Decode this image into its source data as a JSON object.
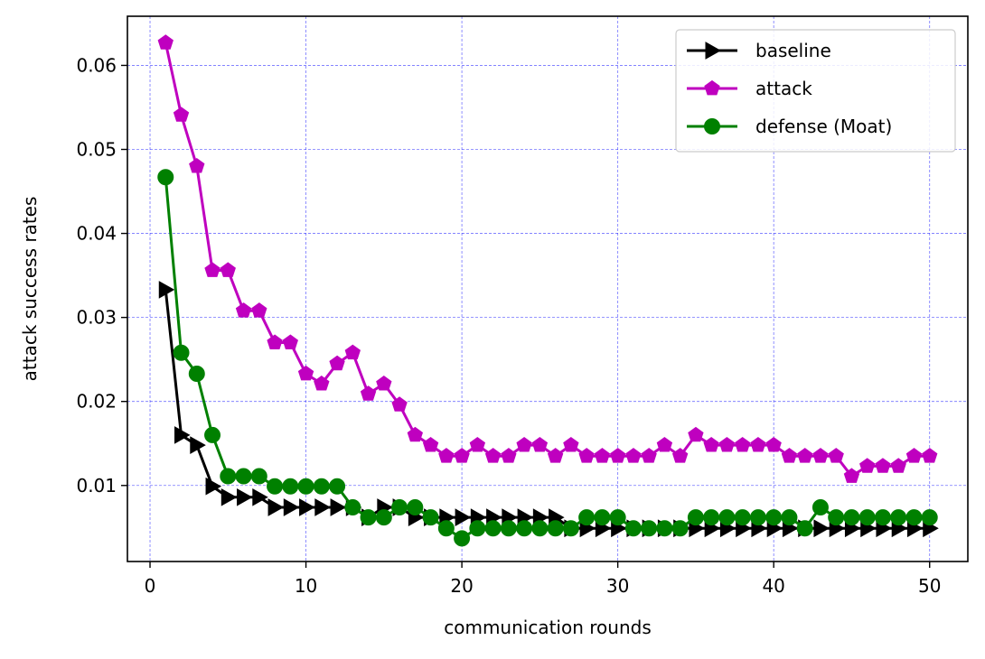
{
  "chart_data": {
    "type": "line",
    "xlabel": "communication rounds",
    "ylabel": "attack success rates",
    "xlim": [
      -1.45,
      52.45
    ],
    "ylim": [
      0.00095,
      0.06585
    ],
    "x_ticks": [
      0,
      10,
      20,
      30,
      40,
      50
    ],
    "x_tick_labels": [
      "0",
      "10",
      "20",
      "30",
      "40",
      "50"
    ],
    "y_ticks": [
      0.01,
      0.02,
      0.03,
      0.04,
      0.05,
      0.06
    ],
    "y_tick_labels": [
      "0.01",
      "0.02",
      "0.03",
      "0.04",
      "0.05",
      "0.06"
    ],
    "grid": true,
    "legend_position": "top-right",
    "x": [
      1,
      2,
      3,
      4,
      5,
      6,
      7,
      8,
      9,
      10,
      11,
      12,
      13,
      14,
      15,
      16,
      17,
      18,
      19,
      20,
      21,
      22,
      23,
      24,
      25,
      26,
      27,
      28,
      29,
      30,
      31,
      32,
      33,
      34,
      35,
      36,
      37,
      38,
      39,
      40,
      41,
      42,
      43,
      44,
      45,
      46,
      47,
      48,
      49,
      50
    ],
    "series": [
      {
        "name": "baseline",
        "color": "#000000",
        "marker": "triangle-right",
        "values": [
          0.0333,
          0.016,
          0.0148,
          0.0099,
          0.0086,
          0.0086,
          0.0086,
          0.0074,
          0.0074,
          0.0074,
          0.0074,
          0.0074,
          0.0074,
          0.0062,
          0.0074,
          0.0074,
          0.0062,
          0.0062,
          0.0062,
          0.0062,
          0.0062,
          0.0062,
          0.0062,
          0.0062,
          0.0062,
          0.0062,
          0.0049,
          0.0049,
          0.0049,
          0.0049,
          0.0049,
          0.0049,
          0.0049,
          0.0049,
          0.0049,
          0.0049,
          0.0049,
          0.0049,
          0.0049,
          0.0049,
          0.0049,
          0.0049,
          0.0049,
          0.0049,
          0.0049,
          0.0049,
          0.0049,
          0.0049,
          0.0049,
          0.0049
        ]
      },
      {
        "name": "attack",
        "color": "#bf00bf",
        "marker": "pentagon",
        "values": [
          0.0627,
          0.0541,
          0.048,
          0.0356,
          0.0356,
          0.0308,
          0.0308,
          0.027,
          0.027,
          0.0233,
          0.0221,
          0.0245,
          0.0258,
          0.0209,
          0.0221,
          0.0196,
          0.016,
          0.0148,
          0.0135,
          0.0135,
          0.0148,
          0.0135,
          0.0135,
          0.0148,
          0.0148,
          0.0135,
          0.0148,
          0.0135,
          0.0135,
          0.0135,
          0.0135,
          0.0135,
          0.0148,
          0.0135,
          0.016,
          0.0148,
          0.0148,
          0.0148,
          0.0148,
          0.0148,
          0.0135,
          0.0135,
          0.0135,
          0.0135,
          0.0111,
          0.0123,
          0.0123,
          0.0123,
          0.0135,
          0.0135
        ]
      },
      {
        "name": "defense (Moat)",
        "color": "#008000",
        "marker": "circle",
        "values": [
          0.0467,
          0.0258,
          0.0233,
          0.016,
          0.0111,
          0.0111,
          0.0111,
          0.0099,
          0.0099,
          0.0099,
          0.0099,
          0.0099,
          0.0074,
          0.0062,
          0.0062,
          0.0074,
          0.0074,
          0.0062,
          0.0049,
          0.0037,
          0.0049,
          0.0049,
          0.0049,
          0.0049,
          0.0049,
          0.0049,
          0.0049,
          0.0062,
          0.0062,
          0.0062,
          0.0049,
          0.0049,
          0.0049,
          0.0049,
          0.0062,
          0.0062,
          0.0062,
          0.0062,
          0.0062,
          0.0062,
          0.0062,
          0.0049,
          0.0074,
          0.0062,
          0.0062,
          0.0062,
          0.0062,
          0.0062,
          0.0062,
          0.0062
        ]
      }
    ]
  }
}
